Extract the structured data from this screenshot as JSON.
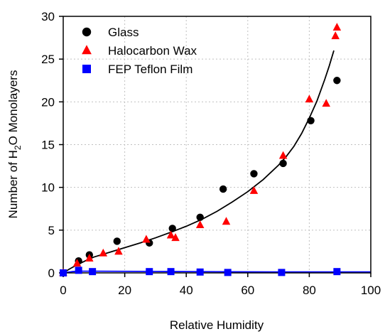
{
  "chart_data": {
    "type": "scatter",
    "xlabel": "Relative Humidity",
    "ylabel_parts": [
      "Number of H",
      "2",
      "O Monolayers"
    ],
    "xlim": [
      0,
      100
    ],
    "ylim": [
      0,
      30
    ],
    "x_ticks": [
      0,
      20,
      40,
      60,
      80,
      100
    ],
    "y_ticks": [
      0,
      5,
      10,
      15,
      20,
      25,
      30
    ],
    "grid": true,
    "legend_position": "top-left",
    "series": [
      {
        "name": "Glass",
        "marker": "circle",
        "color": "#000000",
        "x": [
          0,
          5,
          8.5,
          17.5,
          28,
          35.5,
          44.5,
          52,
          62,
          71.5,
          80.5,
          89
        ],
        "y": [
          0,
          1.4,
          2.1,
          3.7,
          3.5,
          5.2,
          6.5,
          9.8,
          11.6,
          12.8,
          17.8,
          22.5
        ]
      },
      {
        "name": "Halocarbon Wax",
        "marker": "triangle",
        "color": "#ff0000",
        "x": [
          0,
          4.5,
          8.5,
          13,
          18,
          27,
          35,
          36.5,
          44.5,
          53,
          62,
          71.5,
          80,
          85.5,
          88.5,
          89
        ],
        "y": [
          0,
          1.1,
          1.7,
          2.3,
          2.5,
          3.9,
          4.4,
          4.1,
          5.6,
          6.0,
          9.6,
          13.7,
          20.3,
          19.8,
          27.7,
          28.7
        ]
      },
      {
        "name": "FEP Teflon Film",
        "marker": "square",
        "color": "#0000ff",
        "x": [
          0,
          5,
          9.5,
          28,
          35,
          44.5,
          53.5,
          71,
          89
        ],
        "y": [
          0,
          0.3,
          0.15,
          0.15,
          0.15,
          0.1,
          0.05,
          0.05,
          0.15
        ]
      }
    ],
    "fits": [
      {
        "color": "#000000",
        "x": [
          0,
          2,
          4,
          6,
          8,
          10,
          15,
          20,
          25,
          30,
          35,
          40,
          45,
          50,
          55,
          60,
          65,
          70,
          72.5,
          75,
          77.5,
          80,
          82.5,
          85,
          86.5,
          88
        ],
        "y": [
          0,
          0.45,
          0.85,
          1.2,
          1.55,
          1.85,
          2.4,
          2.95,
          3.5,
          4.1,
          4.75,
          5.45,
          6.25,
          7.2,
          8.3,
          9.5,
          10.9,
          12.6,
          13.6,
          14.8,
          16.3,
          18.1,
          20.1,
          22.6,
          24.2,
          26.0
        ]
      },
      {
        "color": "#0000ff",
        "x": [
          0,
          3,
          5,
          10,
          30,
          50,
          70,
          90,
          100
        ],
        "y": [
          0,
          0.15,
          0.2,
          0.2,
          0.17,
          0.13,
          0.11,
          0.12,
          0.12
        ]
      }
    ]
  }
}
